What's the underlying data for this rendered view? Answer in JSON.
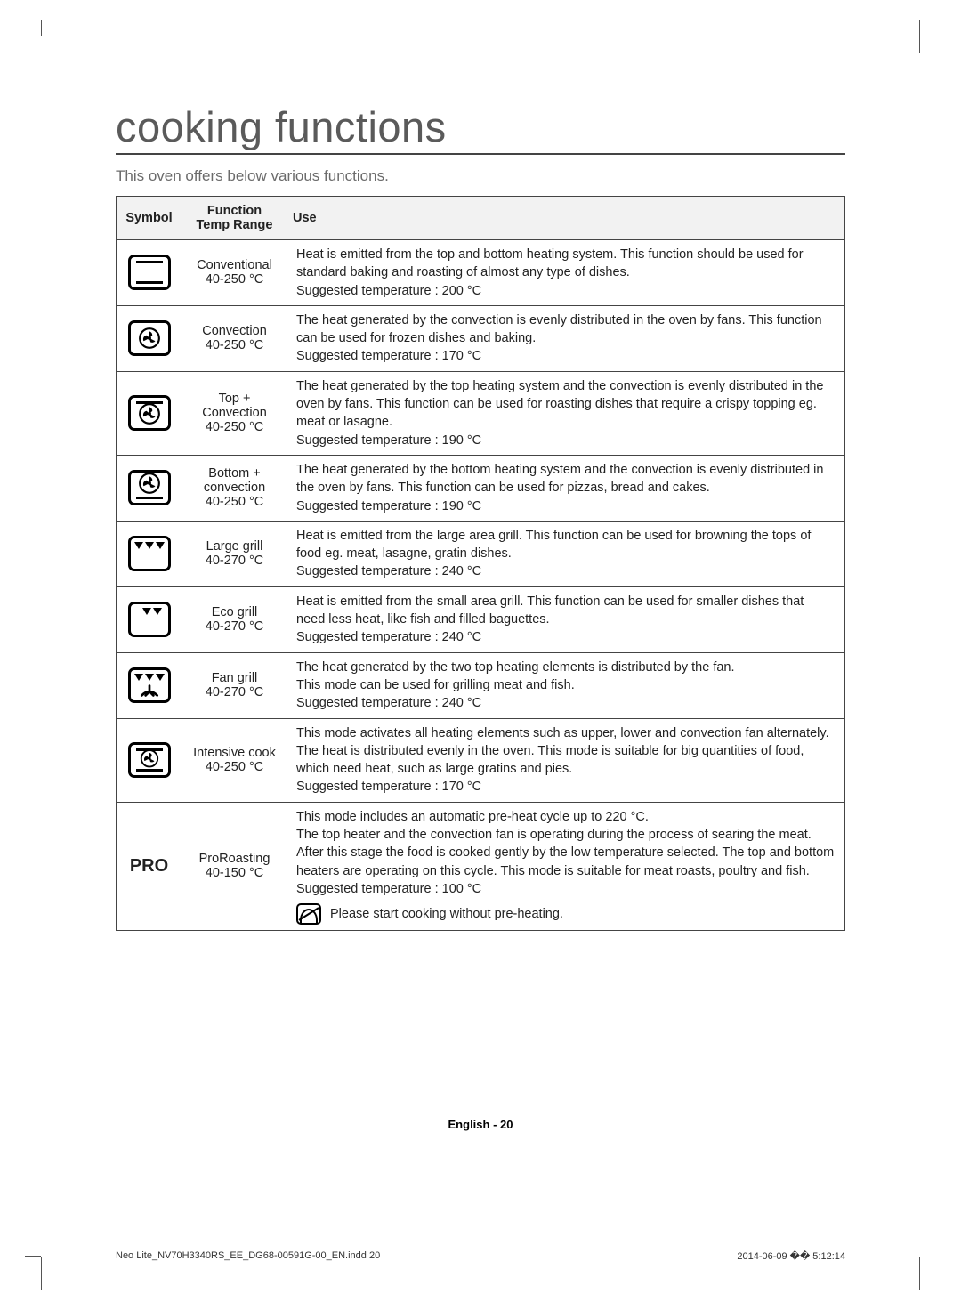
{
  "title": "cooking functions",
  "intro": "This oven offers below various functions.",
  "headers": {
    "symbol": "Symbol",
    "function": "Function\nTemp Range",
    "use": "Use"
  },
  "rows": [
    {
      "icon": "conventional",
      "fn": "Conventional\n40-250 °C",
      "use": "Heat is emitted from the top and bottom heating system. This function should be used for standard baking and roasting of almost any type of dishes.\nSuggested temperature : 200 °C"
    },
    {
      "icon": "convection",
      "fn": "Convection\n40-250 °C",
      "use": "The heat generated by the convection is evenly distributed in the oven by fans. This function can be used for frozen dishes and baking.\nSuggested temperature : 170 °C"
    },
    {
      "icon": "top-convection",
      "fn": "Top +\nConvection\n40-250 °C",
      "use": "The heat generated by the top heating system and the convection is evenly distributed in the oven by fans. This function can be used for roasting dishes that require a crispy topping eg. meat or lasagne.\nSuggested temperature : 190 °C"
    },
    {
      "icon": "bottom-convection",
      "fn": "Bottom +\nconvection\n40-250 °C",
      "use": "The heat generated by the bottom heating system and the convection is evenly distributed in the oven by fans. This function can be used for pizzas, bread and cakes.\nSuggested temperature : 190 °C"
    },
    {
      "icon": "large-grill",
      "fn": "Large grill\n40-270 °C",
      "use": "Heat is emitted from the large area grill. This function can be used for browning the tops of food eg. meat, lasagne, gratin dishes.\nSuggested temperature : 240 °C"
    },
    {
      "icon": "eco-grill",
      "fn": "Eco grill\n40-270 °C",
      "use": "Heat is emitted from the small area grill. This function can be used for smaller dishes that need less heat, like fish and filled baguettes.\nSuggested temperature : 240 °C"
    },
    {
      "icon": "fan-grill",
      "fn": "Fan grill\n40-270 °C",
      "use": "The heat generated by the two top heating elements is distributed by the fan.\nThis mode can be used for grilling meat and fish.\nSuggested temperature : 240 °C"
    },
    {
      "icon": "intensive",
      "fn": "Intensive cook\n40-250 °C",
      "use": "This mode activates all heating elements such as upper, lower and convection fan alternately.\nThe heat is distributed evenly in the oven. This mode is suitable for big quantities of food, which need heat, such as large gratins and pies.\nSuggested temperature : 170 °C"
    },
    {
      "icon": "pro",
      "fn": "ProRoasting\n40-150 °C",
      "use": "This mode includes an automatic pre-heat cycle up to 220 °C.\nThe top heater and the convection fan is operating during the process of searing the meat. After this stage the food is cooked gently by the low temperature selected. The top and bottom heaters are operating on this cycle. This mode is suitable for meat roasts, poultry and fish.\nSuggested temperature : 100 °C",
      "note": "Please start cooking without pre-heating."
    }
  ],
  "footer": {
    "page": "English - 20",
    "left": "Neo Lite_NV70H3340RS_EE_DG68-00591G-00_EN.indd   20",
    "right": "2014-06-09   �� 5:12:14"
  }
}
